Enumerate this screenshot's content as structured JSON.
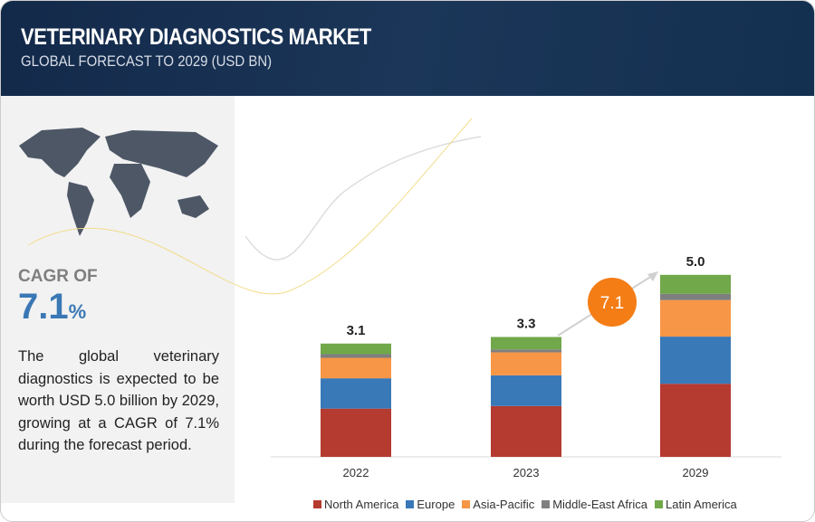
{
  "header": {
    "title": "VETERINARY DIAGNOSTICS MARKET",
    "subtitle": "GLOBAL FORECAST TO 2029 (USD BN)"
  },
  "summary": {
    "cagr_label": "CAGR OF",
    "cagr_value": "7.1",
    "cagr_unit": "%",
    "description": "The global veterinary diagnostics is expected to be worth USD 5.0 billion by 2029, growing at a CAGR of 7.1% during the forecast period.",
    "map_icon": "world-map"
  },
  "chart_data": {
    "type": "bar",
    "stacked": true,
    "categories": [
      "2022",
      "2023",
      "2029"
    ],
    "totals": [
      "3.1",
      "3.3",
      "5.0"
    ],
    "series": [
      {
        "name": "North America",
        "color": "#b53a30",
        "values": [
          1.32,
          1.39,
          2.0
        ]
      },
      {
        "name": "Europe",
        "color": "#3a79b8",
        "values": [
          0.83,
          0.84,
          1.29
        ]
      },
      {
        "name": "Asia-Pacific",
        "color": "#f79646",
        "values": [
          0.56,
          0.63,
          1.0
        ]
      },
      {
        "name": "Middle-East Africa",
        "color": "#7f7f7f",
        "values": [
          0.1,
          0.08,
          0.17
        ]
      },
      {
        "name": "Latin America",
        "color": "#70a84a",
        "values": [
          0.29,
          0.34,
          0.52
        ]
      }
    ],
    "annotation": {
      "text": "7.1",
      "color": "#f47d16"
    },
    "legend": "bottom",
    "grid": false,
    "ylim": [
      0,
      5.0
    ]
  }
}
